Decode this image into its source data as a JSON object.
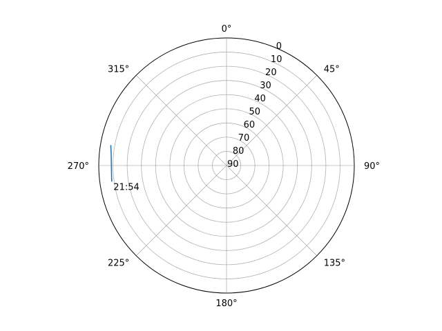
{
  "chart_data": {
    "type": "line",
    "title": "",
    "projection": "polar",
    "theta_zero_location": "top",
    "theta_direction": "clockwise",
    "r_axis_inverted": true,
    "r_range": [
      90,
      0
    ],
    "grid": true,
    "angle_tick_labels": [
      "0°",
      "45°",
      "90°",
      "135°",
      "180°",
      "225°",
      "270°",
      "315°"
    ],
    "angle_tick_values": [
      0,
      45,
      90,
      135,
      180,
      225,
      270,
      315
    ],
    "radial_tick_values": [
      0,
      10,
      20,
      30,
      40,
      50,
      60,
      70,
      80,
      90
    ],
    "radial_tick_labels": [
      "0",
      "10",
      "20",
      "30",
      "40",
      "50",
      "60",
      "70",
      "80",
      "90"
    ],
    "colors": {
      "line": "#1f77b4",
      "grid": "#b0b0b0",
      "frame": "#000000"
    },
    "series": [
      {
        "theta": [
          280,
          278,
          276,
          274,
          272,
          270,
          268,
          266,
          264,
          262
        ],
        "r": [
          7.2,
          7.8,
          8.3,
          8.6,
          8.8,
          8.9,
          8.9,
          8.8,
          8.6,
          8.4
        ]
      }
    ],
    "annotations": [
      {
        "text": "21:54",
        "theta": 263,
        "r": 8.3
      }
    ]
  }
}
